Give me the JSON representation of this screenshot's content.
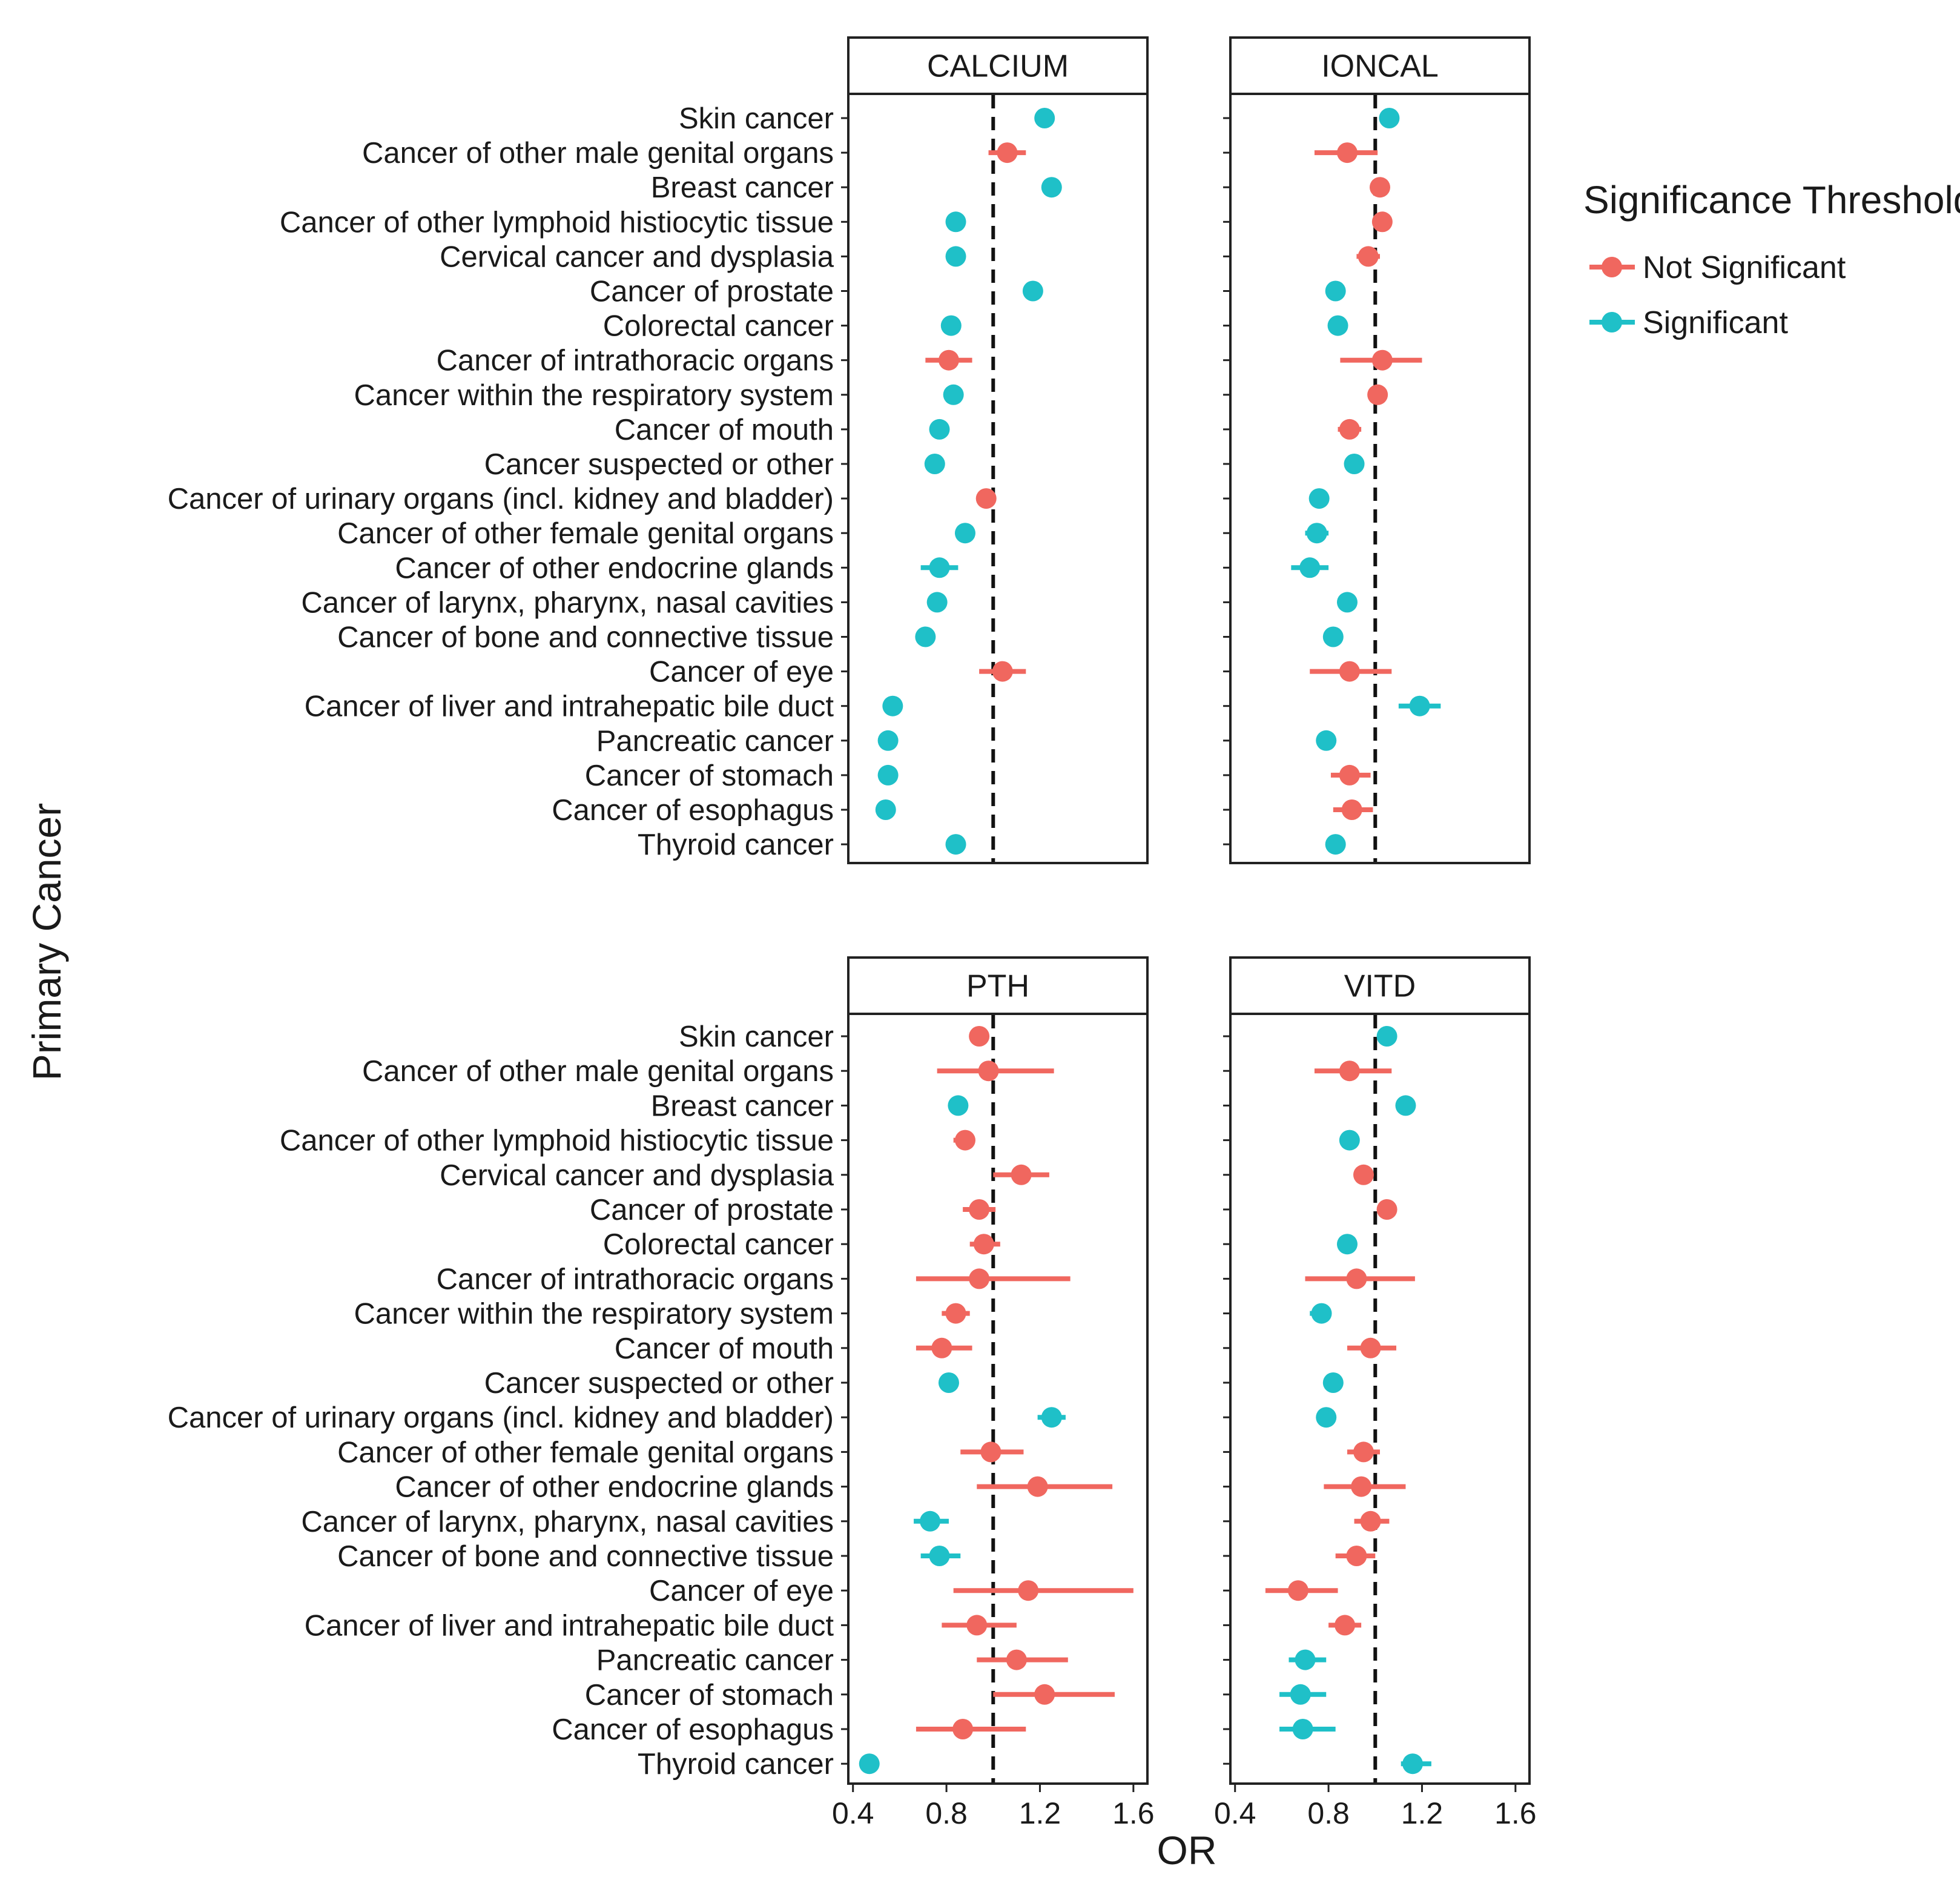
{
  "chart_data": {
    "type": "forest",
    "ylabel": "Primary Cancer",
    "xlabel": "OR",
    "xlim": [
      0.38,
      1.66
    ],
    "xticks": [
      "0.4",
      "0.8",
      "1.2",
      "1.6"
    ],
    "reference_line": 1.0,
    "legend": {
      "title": "Significance Threshold",
      "position": "right-top",
      "entries": [
        {
          "key": "ns",
          "label": "Not Significant",
          "color": "#f0675f"
        },
        {
          "key": "sig",
          "label": "Significant",
          "color": "#1fc0c8"
        }
      ]
    },
    "categories": [
      "Skin cancer",
      "Cancer of other male genital organs",
      "Breast cancer",
      "Cancer of other lymphoid histiocytic tissue",
      "Cervical cancer and dysplasia",
      "Cancer of prostate",
      "Colorectal cancer",
      "Cancer of intrathoracic organs",
      "Cancer within the respiratory system",
      "Cancer of mouth",
      "Cancer suspected or other",
      "Cancer of urinary organs (incl. kidney and bladder)",
      "Cancer of other female genital organs",
      "Cancer of other endocrine glands",
      "Cancer of larynx, pharynx, nasal cavities",
      "Cancer of bone and connective tissue",
      "Cancer of eye",
      "Cancer of liver and intrahepatic bile duct",
      "Pancreatic cancer",
      "Cancer of stomach",
      "Cancer of esophagus",
      "Thyroid cancer"
    ],
    "panels": [
      {
        "name": "CALCIUM",
        "or": [
          1.22,
          1.06,
          1.25,
          0.84,
          0.84,
          1.17,
          0.82,
          0.81,
          0.83,
          0.77,
          0.75,
          0.97,
          0.88,
          0.77,
          0.76,
          0.71,
          1.04,
          0.57,
          0.55,
          0.55,
          0.54,
          0.84
        ],
        "lo": [
          1.21,
          0.98,
          1.24,
          0.83,
          0.83,
          1.16,
          0.81,
          0.71,
          0.82,
          0.76,
          0.74,
          0.96,
          0.86,
          0.69,
          0.74,
          0.7,
          0.94,
          0.56,
          0.54,
          0.54,
          0.5,
          0.83
        ],
        "hi": [
          1.23,
          1.14,
          1.26,
          0.85,
          0.85,
          1.18,
          0.83,
          0.91,
          0.84,
          0.78,
          0.76,
          0.98,
          0.9,
          0.85,
          0.78,
          0.72,
          1.14,
          0.58,
          0.56,
          0.56,
          0.58,
          0.85
        ],
        "sig": [
          1,
          0,
          1,
          1,
          1,
          1,
          1,
          0,
          1,
          1,
          1,
          0,
          1,
          1,
          1,
          1,
          0,
          1,
          1,
          1,
          1,
          1
        ]
      },
      {
        "name": "IONCAL",
        "or": [
          1.06,
          0.88,
          1.02,
          1.03,
          0.97,
          0.83,
          0.84,
          1.03,
          1.01,
          0.89,
          0.91,
          0.76,
          0.75,
          0.72,
          0.88,
          0.82,
          0.89,
          1.19,
          0.79,
          0.89,
          0.9,
          0.83
        ],
        "lo": [
          1.05,
          0.74,
          0.99,
          0.99,
          0.92,
          0.82,
          0.83,
          0.85,
          0.99,
          0.84,
          0.9,
          0.75,
          0.7,
          0.64,
          0.86,
          0.8,
          0.72,
          1.1,
          0.75,
          0.81,
          0.82,
          0.8
        ],
        "hi": [
          1.07,
          1.01,
          1.05,
          1.07,
          1.02,
          0.84,
          0.85,
          1.2,
          1.03,
          0.94,
          0.92,
          0.77,
          0.8,
          0.8,
          0.9,
          0.84,
          1.07,
          1.28,
          0.83,
          0.98,
          0.99,
          0.86
        ],
        "sig": [
          1,
          0,
          0,
          0,
          0,
          1,
          1,
          0,
          0,
          0,
          1,
          1,
          1,
          1,
          1,
          1,
          0,
          1,
          1,
          0,
          0,
          1
        ]
      },
      {
        "name": "PTH",
        "or": [
          0.94,
          0.98,
          0.85,
          0.88,
          1.12,
          0.94,
          0.96,
          0.94,
          0.84,
          0.78,
          0.81,
          1.25,
          0.99,
          1.19,
          0.73,
          0.77,
          1.15,
          0.93,
          1.1,
          1.22,
          0.87,
          0.47
        ],
        "lo": [
          0.9,
          0.76,
          0.83,
          0.83,
          1.0,
          0.87,
          0.9,
          0.67,
          0.78,
          0.67,
          0.8,
          1.19,
          0.86,
          0.93,
          0.66,
          0.69,
          0.83,
          0.78,
          0.93,
          1.0,
          0.67,
          0.46
        ],
        "hi": [
          0.98,
          1.26,
          0.88,
          0.92,
          1.24,
          1.01,
          1.03,
          1.33,
          0.9,
          0.91,
          0.82,
          1.31,
          1.13,
          1.51,
          0.81,
          0.86,
          1.6,
          1.1,
          1.32,
          1.52,
          1.14,
          0.48
        ],
        "sig": [
          0,
          0,
          1,
          0,
          0,
          0,
          0,
          0,
          0,
          0,
          1,
          1,
          0,
          0,
          1,
          1,
          0,
          0,
          0,
          0,
          0,
          1
        ]
      },
      {
        "name": "VITD",
        "or": [
          1.05,
          0.89,
          1.13,
          0.89,
          0.95,
          1.05,
          0.88,
          0.92,
          0.77,
          0.98,
          0.82,
          0.79,
          0.95,
          0.94,
          0.98,
          0.92,
          0.67,
          0.87,
          0.7,
          0.68,
          0.69,
          1.16
        ],
        "lo": [
          1.04,
          0.74,
          1.12,
          0.85,
          0.92,
          1.02,
          0.85,
          0.7,
          0.72,
          0.88,
          0.81,
          0.75,
          0.88,
          0.78,
          0.91,
          0.83,
          0.53,
          0.8,
          0.63,
          0.59,
          0.59,
          1.11
        ],
        "hi": [
          1.06,
          1.07,
          1.14,
          0.93,
          0.98,
          1.08,
          0.91,
          1.17,
          0.81,
          1.09,
          0.83,
          0.83,
          1.02,
          1.13,
          1.06,
          1.0,
          0.84,
          0.94,
          0.79,
          0.79,
          0.83,
          1.24
        ],
        "sig": [
          1,
          0,
          1,
          1,
          0,
          0,
          1,
          0,
          1,
          0,
          1,
          1,
          0,
          0,
          0,
          0,
          0,
          0,
          1,
          1,
          1,
          1
        ]
      }
    ]
  }
}
